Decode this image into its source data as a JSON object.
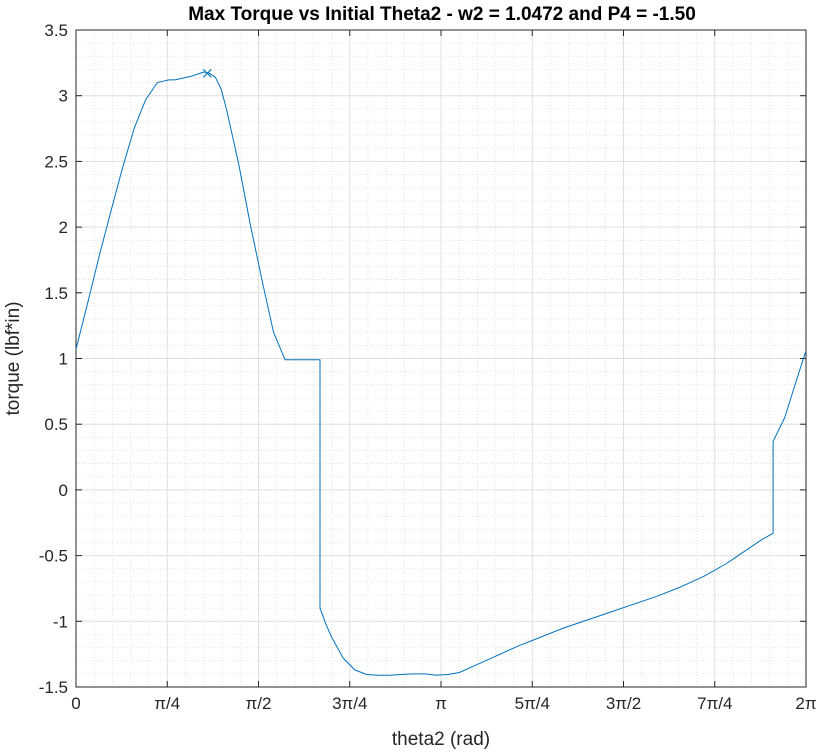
{
  "chart_data": {
    "type": "line",
    "title": "Max Torque vs Initial Theta2 - w2 = 1.0472 and P4 = -1.50",
    "xlabel": "theta2 (rad)",
    "ylabel": "torque (lbf*in)",
    "xlim": [
      0,
      6.2832
    ],
    "ylim": [
      -1.5,
      3.5
    ],
    "x_ticks": [
      {
        "value": 0,
        "label": "0"
      },
      {
        "value": 0.7854,
        "label": "π/4"
      },
      {
        "value": 1.5708,
        "label": "π/2"
      },
      {
        "value": 2.3562,
        "label": "3π/4"
      },
      {
        "value": 3.1416,
        "label": "π"
      },
      {
        "value": 3.927,
        "label": "5π/4"
      },
      {
        "value": 4.7124,
        "label": "3π/2"
      },
      {
        "value": 5.4978,
        "label": "7π/4"
      },
      {
        "value": 6.2832,
        "label": "2π"
      }
    ],
    "y_ticks": [
      {
        "value": -1.5,
        "label": "-1.5"
      },
      {
        "value": -1,
        "label": "-1"
      },
      {
        "value": -0.5,
        "label": "-0.5"
      },
      {
        "value": 0,
        "label": "0"
      },
      {
        "value": 0.5,
        "label": "0.5"
      },
      {
        "value": 1,
        "label": "1"
      },
      {
        "value": 1.5,
        "label": "1.5"
      },
      {
        "value": 2,
        "label": "2"
      },
      {
        "value": 2.5,
        "label": "2.5"
      },
      {
        "value": 3,
        "label": "3"
      },
      {
        "value": 3.5,
        "label": "3.5"
      }
    ],
    "grid": true,
    "minor_grid": true,
    "series": [
      {
        "color": "#0072BD",
        "x": [
          0,
          0.1,
          0.2,
          0.3,
          0.4,
          0.5,
          0.6,
          0.7,
          0.75,
          0.8,
          0.85,
          0.9,
          1.0,
          1.1,
          1.15,
          1.2,
          1.25,
          1.3,
          1.4,
          1.5,
          1.6,
          1.7,
          1.8,
          1.9,
          2.0,
          2.1,
          2.1,
          2.15,
          2.2,
          2.3,
          2.4,
          2.5,
          2.6,
          2.7,
          2.8,
          2.9,
          3.0,
          3.05,
          3.1,
          3.2,
          3.3,
          3.4,
          3.6,
          3.8,
          4.0,
          4.2,
          4.4,
          4.6,
          4.8,
          5.0,
          5.2,
          5.4,
          5.6,
          5.7,
          5.8,
          5.9,
          6.0,
          6.0,
          6.1,
          6.2,
          6.28
        ],
        "y": [
          1.07,
          1.42,
          1.78,
          2.12,
          2.45,
          2.75,
          2.97,
          3.1,
          3.11,
          3.12,
          3.12,
          3.13,
          3.15,
          3.18,
          3.17,
          3.14,
          3.05,
          2.88,
          2.48,
          2.02,
          1.6,
          1.2,
          0.99,
          0.99,
          0.99,
          0.99,
          -0.9,
          -1.02,
          -1.12,
          -1.28,
          -1.37,
          -1.405,
          -1.41,
          -1.41,
          -1.405,
          -1.4,
          -1.4,
          -1.405,
          -1.41,
          -1.405,
          -1.39,
          -1.35,
          -1.27,
          -1.19,
          -1.12,
          -1.05,
          -0.99,
          -0.93,
          -0.87,
          -0.81,
          -0.74,
          -0.66,
          -0.56,
          -0.5,
          -0.44,
          -0.38,
          -0.33,
          0.37,
          0.55,
          0.83,
          1.05
        ]
      }
    ],
    "marker": {
      "x": 1.13,
      "y": 3.17,
      "symbol": "x",
      "color": "#0072BD"
    }
  }
}
